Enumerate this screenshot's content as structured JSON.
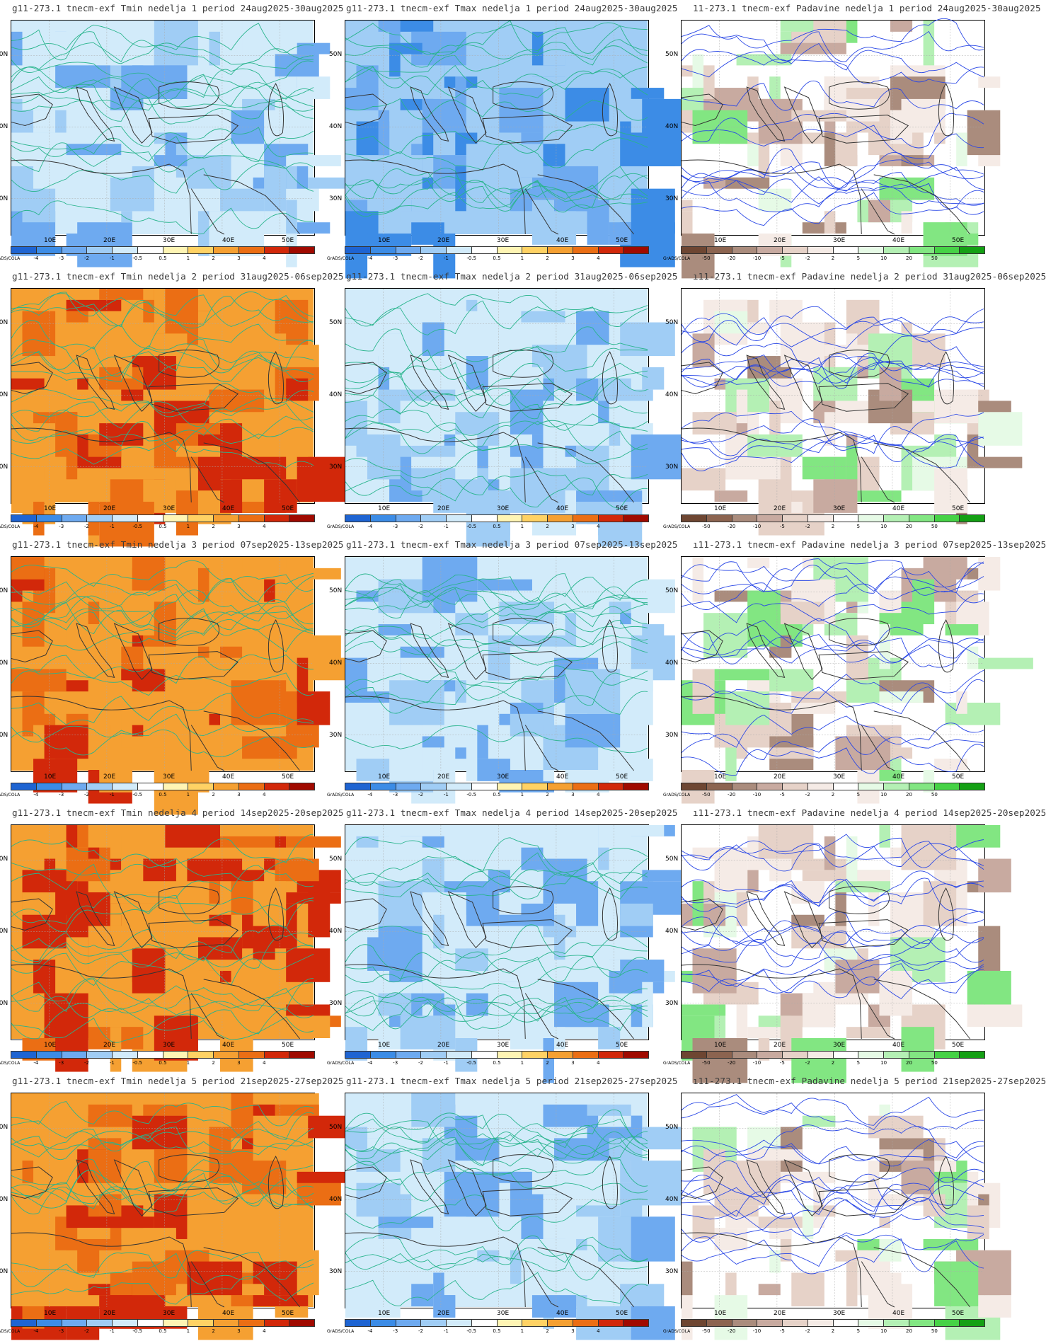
{
  "credit": "GrADS/COLA",
  "lat_labels": [
    "50N",
    "40N",
    "30N"
  ],
  "lon_labels": [
    "10E",
    "20E",
    "30E",
    "40E",
    "50E"
  ],
  "temp_colorbar": {
    "ticks": [
      "-4",
      "-3",
      "-2",
      "-1",
      "-0.5",
      "0.5",
      "1",
      "2",
      "3",
      "4"
    ],
    "colors": [
      "#1e64d2",
      "#3c8ce6",
      "#6eaaf0",
      "#a0cdf5",
      "#d2ebfa",
      "#ffffff",
      "#fff5b4",
      "#ffd264",
      "#f5a032",
      "#eb6e14",
      "#d2280a",
      "#a00a00"
    ]
  },
  "precip_colorbar": {
    "ticks": [
      "-50",
      "-20",
      "-10",
      "-5",
      "-2",
      "2",
      "5",
      "10",
      "20",
      "50"
    ],
    "colors": [
      "#6e4632",
      "#8c6450",
      "#aa8c7d",
      "#c8aaa0",
      "#e6d2c8",
      "#f5ebe6",
      "#ffffff",
      "#e6fae6",
      "#b4f0b4",
      "#82e682",
      "#46d246",
      "#14a014"
    ]
  },
  "rows": [
    {
      "tmin_title": "g11-273.1 tnecm-exf Tmin nedelja 1 period 24aug2025-30aug2025",
      "tmax_title": "g11-273.1 tnecm-exf Tmax nedelja 1 period 24aug2025-30aug2025",
      "prec_title": "11-273.1 tnecm-exf Padavine nedelja 1 period 24aug2025-30aug2025",
      "tmin_anomaly_level": -1.0,
      "tmax_anomaly_level": -2.0
    },
    {
      "tmin_title": "g11-273.1 tnecm-exf Tmin nedelja 2 period 31aug2025-06sep2025",
      "tmax_title": "g11-273.1 tnecm-exf Tmax nedelja 2 period 31aug2025-06sep2025",
      "prec_title": "ı11-273.1 tnecm-exf Padavine nedelja 2 period 31aug2025-06sep2025",
      "tmin_anomaly_level": 1.5,
      "tmax_anomaly_level": -1.0
    },
    {
      "tmin_title": "g11-273.1 tnecm-exf Tmin nedelja 3 period 07sep2025-13sep2025",
      "tmax_title": "g11-273.1 tnecm-exf Tmax nedelja 3 period 07sep2025-13sep2025",
      "prec_title": "ı11-273.1 tnecm-exf Padavine nedelja 3 period 07sep2025-13sep2025",
      "tmin_anomaly_level": 2.0,
      "tmax_anomaly_level": -1.0
    },
    {
      "tmin_title": "g11-273.1 tnecm-exf Tmin nedelja 4 period 14sep2025-20sep2025",
      "tmax_title": "g11-273.1 tnecm-exf Tmax nedelja 4 period 14sep2025-20sep2025",
      "prec_title": "ı11-273.1 tnecm-exf Padavine nedelja 4 period 14sep2025-20sep2025",
      "tmin_anomaly_level": 2.0,
      "tmax_anomaly_level": -1.0
    },
    {
      "tmin_title": "g11-273.1 tnecm-exf Tmin nedelja 5 period 21sep2025-27sep2025",
      "tmax_title": "g11-273.1 tnecm-exf Tmax nedelja 5 period 21sep2025-27sep2025",
      "prec_title": "ı11-273.1 tnecm-exf Padavine nedelja 5 period 21sep2025-27sep2025",
      "tmin_anomaly_level": 2.0,
      "tmax_anomaly_level": -1.0
    }
  ]
}
